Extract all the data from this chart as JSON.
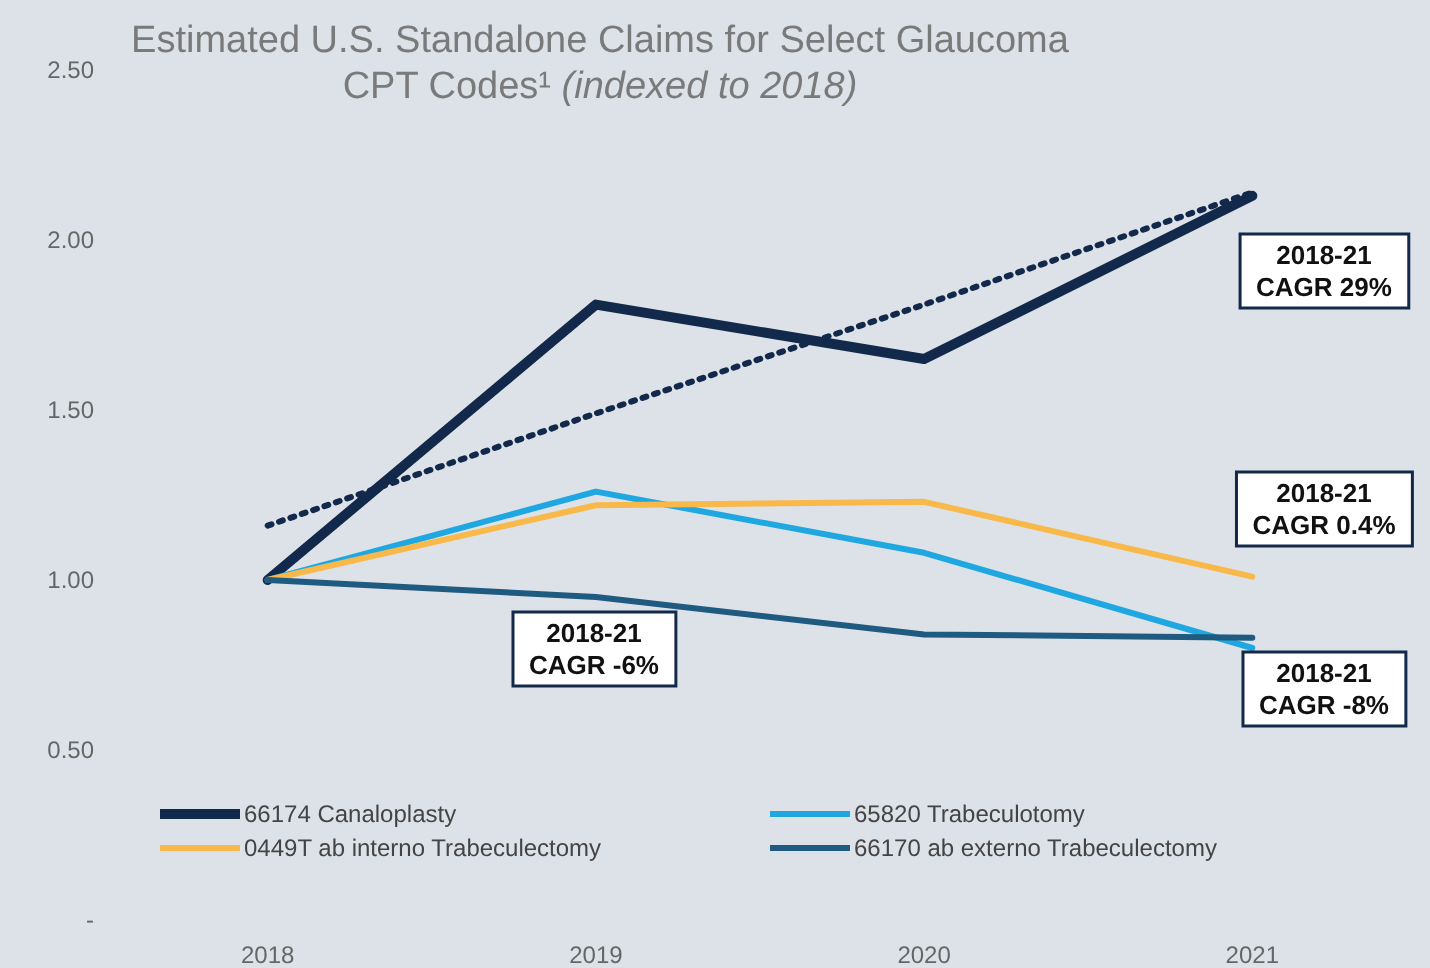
{
  "chart_data": {
    "type": "line",
    "title": "Estimated U.S. Standalone Claims for Select Glaucoma CPT Codes¹",
    "subtitle": "(indexed to 2018)",
    "categories": [
      "2018",
      "2019",
      "2020",
      "2021"
    ],
    "ylim": [
      0,
      2.5
    ],
    "yticks": [
      {
        "value": 0,
        "label": "-"
      },
      {
        "value": 0.5,
        "label": "0.50"
      },
      {
        "value": 1,
        "label": "1.00"
      },
      {
        "value": 1.5,
        "label": "1.50"
      },
      {
        "value": 2,
        "label": "2.00"
      },
      {
        "value": 2.5,
        "label": "2.50"
      }
    ],
    "grid": false,
    "legend": "bottom",
    "marker": "none",
    "line_style": "solid",
    "series": [
      {
        "name": "66174 Canaloplasty",
        "color": "#13294b",
        "values": [
          1.0,
          1.81,
          1.65,
          2.13
        ]
      },
      {
        "name": "65820 Trabeculotomy",
        "color": "#1ea7e1",
        "values": [
          1.0,
          1.26,
          1.08,
          0.8
        ]
      },
      {
        "name": "0449T ab interno Trabeculectomy",
        "color": "#f9b84a",
        "values": [
          1.0,
          1.22,
          1.23,
          1.01
        ]
      },
      {
        "name": "66170 ab externo Trabeculectomy",
        "color": "#1f5a80",
        "values": [
          1.0,
          0.95,
          0.84,
          0.83
        ]
      },
      {
        "type": "line",
        "color": "#13294b",
        "line_style": "dotted",
        "values": [
          1.16,
          1.49,
          1.81,
          2.14
        ]
      }
    ],
    "annotations": [
      "2018-21\nCAGR 29%",
      "2018-21\nCAGR 0.4%",
      "2018-21\nCAGR -8%",
      "2018-21\nCAGR -6%"
    ]
  }
}
